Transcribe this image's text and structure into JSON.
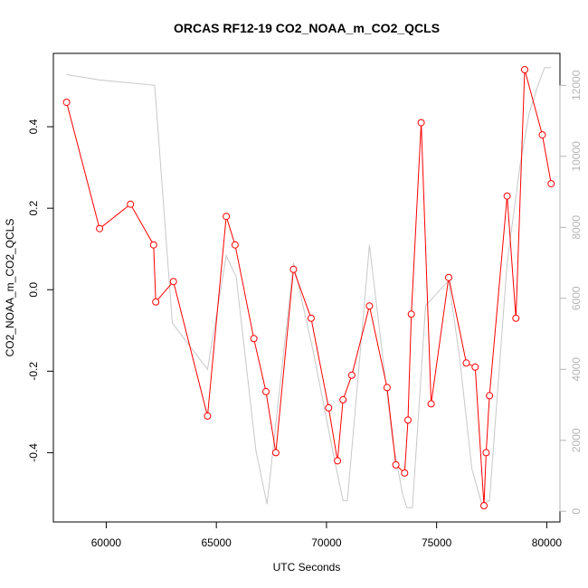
{
  "chart_data": {
    "type": "line",
    "title": "ORCAS RF12-19 CO2_NOAA_m_CO2_QCLS",
    "xlabel": "UTC Seconds",
    "ylabel": "CO2_NOAA_m_CO2_QCLS",
    "xlim": [
      57600,
      80600
    ],
    "ylim": [
      -0.57,
      0.58
    ],
    "y2lim": [
      -300,
      12900
    ],
    "x_ticks": [
      60000,
      65000,
      70000,
      75000,
      80000
    ],
    "y_ticks": [
      -0.4,
      -0.2,
      0.0,
      0.2,
      0.4
    ],
    "y_tick_labels": [
      "-0.4",
      "-0.2",
      "0.0",
      "0.2",
      "0.4"
    ],
    "y2_ticks": [
      0,
      2000,
      4000,
      6000,
      8000,
      10000,
      12000
    ],
    "grid": false,
    "colors": {
      "primary": "#ff0000",
      "secondary": "#c8c8c8",
      "right_axis": "#b5b5b5"
    },
    "series": [
      {
        "role": "primary",
        "marker": "open-circle",
        "color": "#ff0000",
        "x": [
          58200,
          59700,
          61100,
          62150,
          62250,
          63050,
          64600,
          65450,
          65850,
          66700,
          67250,
          67700,
          68500,
          69300,
          70100,
          70500,
          70750,
          71150,
          71950,
          72750,
          73150,
          73550,
          73700,
          73850,
          74300,
          74750,
          75550,
          76350,
          76750,
          77150,
          77250,
          77400,
          78200,
          78600,
          79000,
          79800,
          80200
        ],
        "values": [
          0.46,
          0.15,
          0.21,
          0.11,
          -0.03,
          0.02,
          -0.31,
          0.18,
          0.11,
          -0.12,
          -0.25,
          -0.4,
          0.05,
          -0.07,
          -0.29,
          -0.42,
          -0.27,
          -0.21,
          -0.04,
          -0.24,
          -0.43,
          -0.45,
          -0.32,
          -0.06,
          0.41,
          -0.28,
          0.03,
          -0.18,
          -0.19,
          -0.53,
          -0.4,
          -0.26,
          0.23,
          -0.07,
          0.54,
          0.38,
          0.26
        ]
      },
      {
        "role": "secondary",
        "color": "#c8c8c8",
        "x": [
          58200,
          59700,
          62200,
          63000,
          64600,
          65450,
          65900,
          66800,
          67300,
          68500,
          69400,
          70350,
          70750,
          70950,
          71950,
          73000,
          73450,
          73650,
          73900,
          74500,
          74800,
          75550,
          76050,
          76600,
          77050,
          77400,
          78200,
          78800,
          79200,
          79600,
          79900,
          80200
        ],
        "values": [
          12300,
          12150,
          12000,
          5300,
          4000,
          7200,
          6600,
          1700,
          200,
          7000,
          4500,
          1500,
          300,
          300,
          7500,
          2000,
          500,
          100,
          100,
          5800,
          6000,
          6500,
          4300,
          1200,
          200,
          300,
          7000,
          9800,
          11200,
          12000,
          12500,
          12500
        ]
      }
    ]
  }
}
